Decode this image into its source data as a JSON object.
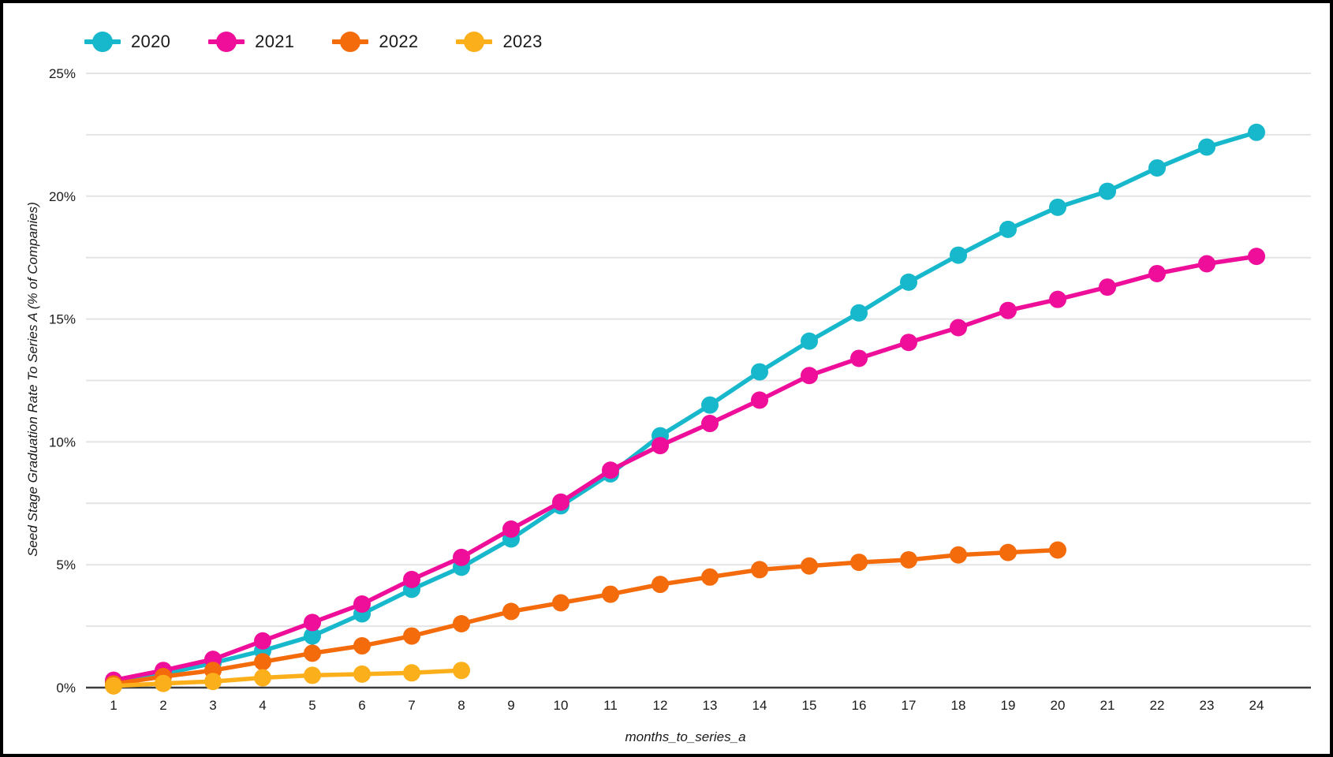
{
  "chart_data": {
    "type": "line",
    "title": "",
    "xlabel": "months_to_series_a",
    "ylabel": "Seed Stage Graduation Rate To Series A (% of Companies)",
    "categories": [
      1,
      2,
      3,
      4,
      5,
      6,
      7,
      8,
      9,
      10,
      11,
      12,
      13,
      14,
      15,
      16,
      17,
      18,
      19,
      20,
      21,
      22,
      23,
      24
    ],
    "ylim": [
      0,
      25
    ],
    "y_major_ticks": [
      0,
      5,
      10,
      15,
      20,
      25
    ],
    "y_tick_labels": [
      "0%",
      "5%",
      "10%",
      "15%",
      "20%",
      "25%"
    ],
    "y_grid_step": 2.5,
    "grid": "on",
    "legend_position": "top-left",
    "legend_entries": [
      "2020",
      "2021",
      "2022",
      "2023"
    ],
    "series": [
      {
        "name": "2020",
        "color": "#17b8cb",
        "values": [
          0.2,
          0.55,
          1.0,
          1.5,
          2.1,
          3.0,
          4.0,
          4.9,
          6.05,
          7.4,
          8.7,
          10.25,
          11.5,
          12.85,
          14.1,
          15.25,
          16.5,
          17.6,
          18.65,
          19.55,
          20.2,
          21.15,
          22.0,
          22.6
        ]
      },
      {
        "name": "2021",
        "color": "#ee0e9a",
        "values": [
          0.3,
          0.7,
          1.15,
          1.9,
          2.65,
          3.4,
          4.4,
          5.3,
          6.45,
          7.55,
          8.85,
          9.85,
          10.75,
          11.7,
          12.7,
          13.4,
          14.05,
          14.65,
          15.35,
          15.8,
          16.3,
          16.85,
          17.25,
          17.55
        ]
      },
      {
        "name": "2022",
        "color": "#f46b0c",
        "values": [
          0.15,
          0.45,
          0.7,
          1.05,
          1.4,
          1.7,
          2.1,
          2.6,
          3.1,
          3.45,
          3.8,
          4.2,
          4.5,
          4.8,
          4.95,
          5.1,
          5.2,
          5.4,
          5.5,
          5.6
        ]
      },
      {
        "name": "2023",
        "color": "#fbaf1a",
        "values": [
          0.07,
          0.17,
          0.25,
          0.4,
          0.5,
          0.55,
          0.6,
          0.7
        ]
      }
    ]
  },
  "colors": {
    "background": "#ffffff",
    "frame": "#000000",
    "gridline": "#e4e4e4",
    "axis_line": "#3c3c3c",
    "tick_text": "#1a1a1a"
  }
}
